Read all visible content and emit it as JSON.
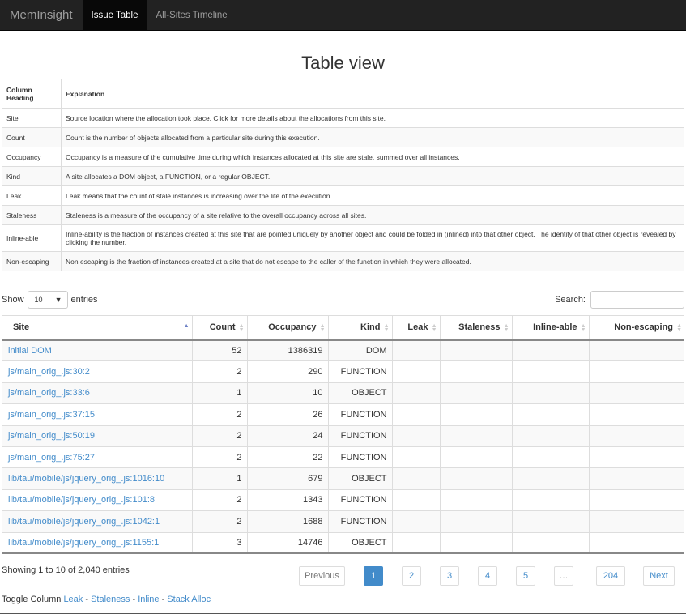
{
  "nav": {
    "brand": "MemInsight",
    "items": [
      {
        "label": "Issue Table",
        "active": true
      },
      {
        "label": "All-Sites Timeline",
        "active": false
      }
    ]
  },
  "title": "Table view",
  "explanations": {
    "header": [
      "Column Heading",
      "Explanation"
    ],
    "rows": [
      [
        "Site",
        "Source location where the allocation took place. Click for more details about the allocations from this site."
      ],
      [
        "Count",
        "Count is the number of objects allocated from a particular site during this execution."
      ],
      [
        "Occupancy",
        "Occupancy is a measure of the cumulative time during which instances allocated at this site are stale, summed over all instances."
      ],
      [
        "Kind",
        "A site allocates a DOM object, a FUNCTION, or a regular OBJECT."
      ],
      [
        "Leak",
        "Leak means that the count of stale instances is increasing over the life of the execution."
      ],
      [
        "Staleness",
        "Staleness is a measure of the occupancy of a site relative to the overall occupancy across all sites."
      ],
      [
        "Inline-able",
        "Inline-ability is the fraction of instances created at this site that are pointed uniquely by another object and could be folded in (inlined) into that other object. The identity of that other object is revealed by clicking the number."
      ],
      [
        "Non-escaping",
        "Non escaping is the fraction of instances created at a site that do not escape to the caller of the function in which they were allocated."
      ]
    ]
  },
  "controls": {
    "show": "Show",
    "page_size": "10",
    "entries": "entries",
    "search_label": "Search:",
    "search_value": ""
  },
  "table": {
    "columns": [
      "Site",
      "Count",
      "Occupancy",
      "Kind",
      "Leak",
      "Staleness",
      "Inline-able",
      "Non-escaping"
    ],
    "sorted_column": "Site",
    "sort_dir": "asc",
    "rows": [
      [
        "initial DOM",
        "52",
        "1386319",
        "DOM",
        "",
        "",
        "",
        ""
      ],
      [
        "js/main_orig_.js:30:2",
        "2",
        "290",
        "FUNCTION",
        "",
        "",
        "",
        ""
      ],
      [
        "js/main_orig_.js:33:6",
        "1",
        "10",
        "OBJECT",
        "",
        "",
        "",
        ""
      ],
      [
        "js/main_orig_.js:37:15",
        "2",
        "26",
        "FUNCTION",
        "",
        "",
        "",
        ""
      ],
      [
        "js/main_orig_.js:50:19",
        "2",
        "24",
        "FUNCTION",
        "",
        "",
        "",
        ""
      ],
      [
        "js/main_orig_.js:75:27",
        "2",
        "22",
        "FUNCTION",
        "",
        "",
        "",
        ""
      ],
      [
        "lib/tau/mobile/js/jquery_orig_.js:1016:10",
        "1",
        "679",
        "OBJECT",
        "",
        "",
        "",
        ""
      ],
      [
        "lib/tau/mobile/js/jquery_orig_.js:101:8",
        "2",
        "1343",
        "FUNCTION",
        "",
        "",
        "",
        ""
      ],
      [
        "lib/tau/mobile/js/jquery_orig_.js:1042:1",
        "2",
        "1688",
        "FUNCTION",
        "",
        "",
        "",
        ""
      ],
      [
        "lib/tau/mobile/js/jquery_orig_.js:1155:1",
        "3",
        "14746",
        "OBJECT",
        "",
        "",
        "",
        ""
      ]
    ]
  },
  "info": "Showing 1 to 10 of 2,040 entries",
  "pagination": {
    "previous": "Previous",
    "pages": [
      "1",
      "2",
      "3",
      "4",
      "5",
      "…",
      "204"
    ],
    "current": "1",
    "next": "Next"
  },
  "toggle": {
    "label": "Toggle Column",
    "links": [
      "Leak",
      "Staleness",
      "Inline",
      "Stack Alloc"
    ],
    "sep": "-"
  },
  "colors": {
    "accent": "#428bca",
    "navbar": "#222222"
  }
}
